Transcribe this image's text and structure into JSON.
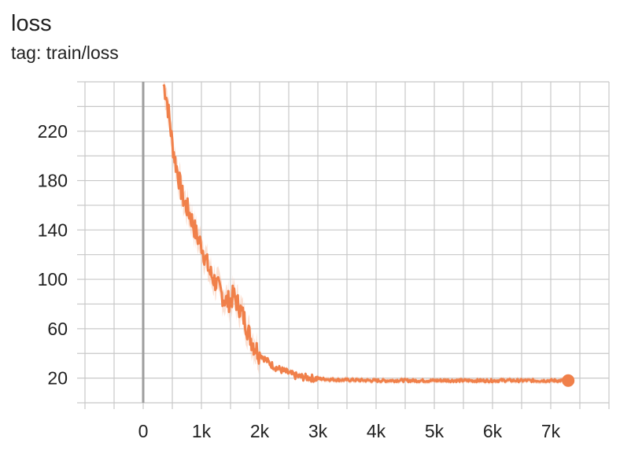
{
  "header": {
    "title": "loss",
    "subtitle": "tag: train/loss"
  },
  "colors": {
    "series": "#f0804a",
    "band": "#f7c5ac",
    "grid": "#c8c8c8",
    "zero_axis": "#9e9e9e"
  },
  "chart_data": {
    "type": "line",
    "title": "loss",
    "subtitle": "tag: train/loss",
    "xlabel": "",
    "ylabel": "",
    "xlim": [
      -1000,
      8000
    ],
    "ylim": [
      0,
      260
    ],
    "grid": true,
    "x_ticks": [
      0,
      1000,
      2000,
      3000,
      4000,
      5000,
      6000,
      7000
    ],
    "x_tick_labels": [
      "0",
      "1k",
      "2k",
      "3k",
      "4k",
      "5k",
      "6k",
      "7k"
    ],
    "y_ticks": [
      20,
      60,
      100,
      140,
      180,
      220
    ],
    "y_tick_labels": [
      "20",
      "60",
      "100",
      "140",
      "180",
      "220"
    ],
    "series": [
      {
        "x": [
          350,
          400,
          450,
          500,
          550,
          600,
          650,
          700,
          750,
          800,
          850,
          900,
          950,
          1000,
          1050,
          1100,
          1150,
          1200,
          1250,
          1300,
          1350,
          1400,
          1450,
          1500,
          1550,
          1600,
          1650,
          1700,
          1750,
          1800,
          1850,
          1900,
          1950,
          2000,
          2100,
          2200,
          2300,
          2400,
          2500,
          2600,
          2700,
          2800,
          2900,
          3000,
          3200,
          3400,
          3600,
          3800,
          4000,
          4200,
          4400,
          4600,
          4800,
          5000,
          5200,
          5400,
          5600,
          5800,
          6000,
          6200,
          6400,
          6600,
          6800,
          7000,
          7200,
          7300
        ],
        "y": [
          258,
          248,
          230,
          210,
          196,
          185,
          172,
          163,
          158,
          153,
          146,
          138,
          132,
          128,
          120,
          112,
          105,
          101,
          97,
          92,
          88,
          84,
          82,
          83,
          87,
          82,
          78,
          72,
          66,
          58,
          52,
          47,
          43,
          40,
          35,
          31,
          28,
          26,
          24,
          22,
          21,
          20.5,
          20,
          19.5,
          19,
          18.5,
          18.5,
          18.2,
          18,
          18,
          18.2,
          18,
          18,
          18,
          18.2,
          18,
          18,
          18,
          18,
          18.2,
          18,
          18,
          18,
          18,
          18,
          18
        ]
      }
    ]
  }
}
